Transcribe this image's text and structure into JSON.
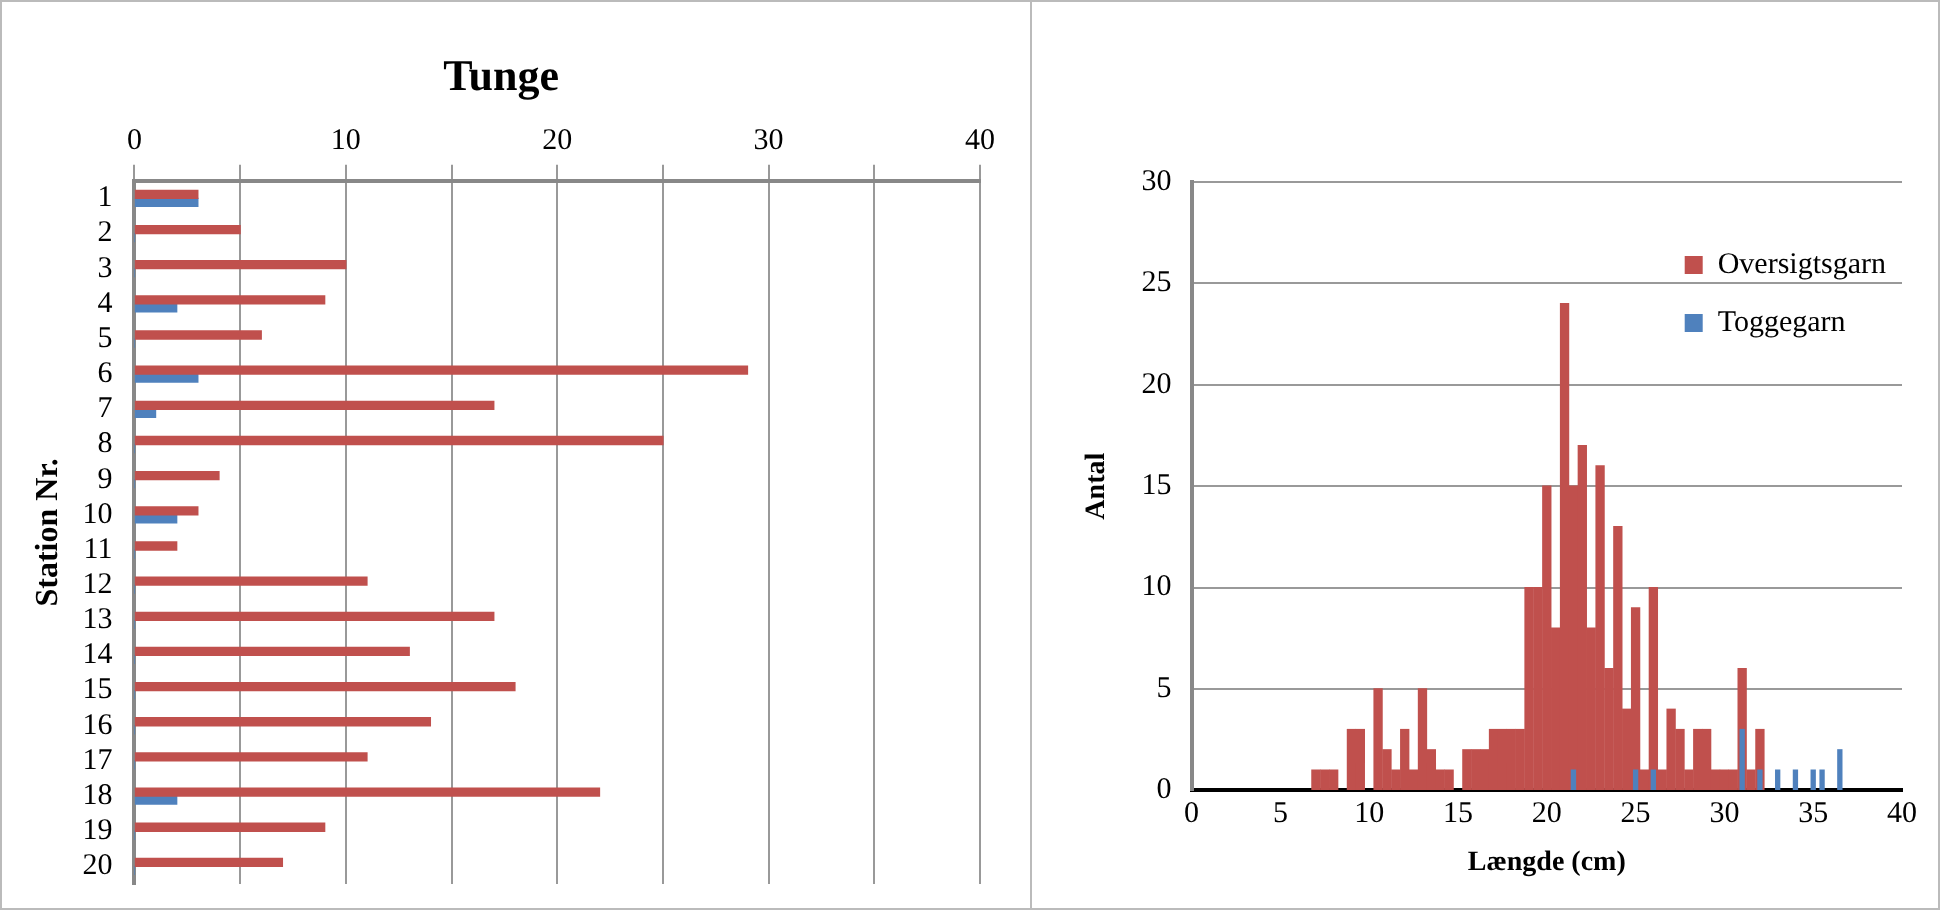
{
  "chart_data": [
    {
      "type": "bar",
      "orientation": "horizontal",
      "title": "Tunge",
      "ylabel": "Station Nr.",
      "categories": [
        "1",
        "2",
        "3",
        "4",
        "5",
        "6",
        "7",
        "8",
        "9",
        "10",
        "11",
        "12",
        "13",
        "14",
        "15",
        "16",
        "17",
        "18",
        "19",
        "20"
      ],
      "series": [
        {
          "color": "#c0504d",
          "values": [
            3,
            5,
            10,
            9,
            6,
            29,
            17,
            25,
            4,
            3,
            2,
            11,
            17,
            13,
            18,
            14,
            11,
            22,
            9,
            7
          ]
        },
        {
          "color": "#4f81bd",
          "values": [
            3,
            0,
            0,
            2,
            0,
            3,
            1,
            0,
            0,
            2,
            0,
            0,
            0,
            0,
            0,
            0,
            0,
            2,
            0,
            0
          ]
        }
      ],
      "xlim": [
        0,
        40
      ],
      "xticks": [
        0,
        10,
        20,
        30,
        40
      ],
      "grid": "x",
      "legend": false
    },
    {
      "type": "bar",
      "xlabel": "Længde (cm)",
      "ylabel": "Antal",
      "xlim": [
        0,
        40
      ],
      "xticks": [
        0,
        5,
        10,
        15,
        20,
        25,
        30,
        35,
        40
      ],
      "ylim": [
        0,
        30
      ],
      "yticks": [
        0,
        5,
        10,
        15,
        20,
        25,
        30
      ],
      "grid": "y",
      "legend": "top right",
      "series": [
        {
          "name": "Oversigtsgarn",
          "color": "#c0504d",
          "x": [
            7,
            7.5,
            8,
            9,
            9.5,
            10.5,
            11,
            11.5,
            12,
            12.5,
            13,
            13.5,
            14,
            14.5,
            15.5,
            16,
            16.5,
            17,
            17.5,
            18,
            18.5,
            19,
            19.5,
            20,
            20.5,
            21,
            21.5,
            22,
            22.5,
            23,
            23.5,
            24,
            24.5,
            25,
            25.5,
            26,
            26.5,
            27,
            27.5,
            28,
            28.5,
            29,
            29.5,
            30,
            30.5,
            31,
            31.5,
            32
          ],
          "values": [
            1,
            1,
            1,
            3,
            3,
            5,
            2,
            1,
            3,
            1,
            5,
            2,
            1,
            1,
            2,
            2,
            2,
            3,
            3,
            3,
            3,
            10,
            10,
            15,
            8,
            24,
            15,
            17,
            8,
            16,
            6,
            13,
            4,
            9,
            1,
            10,
            1,
            4,
            3,
            1,
            3,
            3,
            1,
            1,
            1,
            6,
            1,
            3
          ]
        },
        {
          "name": "Toggegarn",
          "color": "#4f81bd",
          "x": [
            21.5,
            25,
            26,
            31,
            32,
            33,
            34,
            35,
            35.5,
            36.5
          ],
          "values": [
            1,
            1,
            1,
            3,
            1,
            1,
            1,
            1,
            1,
            2
          ]
        }
      ]
    }
  ]
}
